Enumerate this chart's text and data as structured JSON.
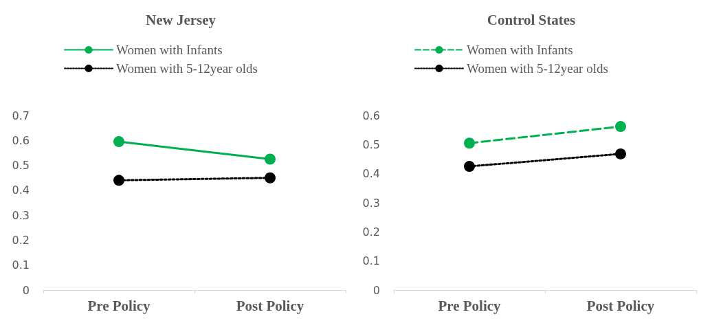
{
  "chart_data": [
    {
      "type": "line",
      "title": "New Jersey",
      "categories": [
        "Pre Policy",
        "Post Policy"
      ],
      "series": [
        {
          "name": "Women with Infants",
          "color": "#00b050",
          "values": [
            0.595,
            0.525
          ],
          "line_style": "solid"
        },
        {
          "name": "Women with 5-12year olds",
          "color": "#000000",
          "values": [
            0.44,
            0.45
          ],
          "line_style": "dotted"
        }
      ],
      "ylim": [
        0,
        0.7
      ],
      "yticks": [
        0,
        0.1,
        0.2,
        0.3,
        0.4,
        0.5,
        0.6,
        0.7
      ],
      "grid": false,
      "legend": "top left",
      "marker": "circle"
    },
    {
      "type": "line",
      "title": "Control States",
      "categories": [
        "Pre Policy",
        "Post Policy"
      ],
      "series": [
        {
          "name": "Women with Infants",
          "color": "#00b050",
          "values": [
            0.505,
            0.562
          ],
          "line_style": "dashed"
        },
        {
          "name": "Women with 5-12year olds",
          "color": "#000000",
          "values": [
            0.425,
            0.468
          ],
          "line_style": "dotted"
        }
      ],
      "ylim": [
        0,
        0.6
      ],
      "yticks": [
        0,
        0.1,
        0.2,
        0.3,
        0.4,
        0.5,
        0.6
      ],
      "grid": false,
      "legend": "top left",
      "marker": "circle"
    }
  ]
}
